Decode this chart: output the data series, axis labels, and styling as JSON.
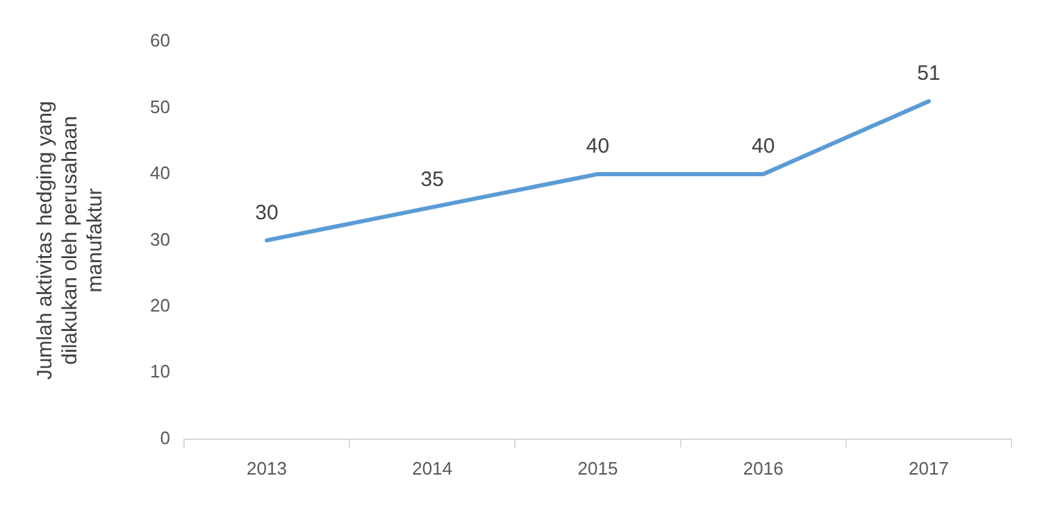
{
  "chart_data": {
    "type": "line",
    "ylabel": "Jumlah aktivitas hedging yang dilakukan oleh perusahaan manufaktur",
    "categories": [
      "2013",
      "2014",
      "2015",
      "2016",
      "2017"
    ],
    "series": [
      {
        "color": "#5b9bd5",
        "values": [
          30,
          35,
          40,
          40,
          51
        ]
      }
    ],
    "ylim": [
      0,
      60
    ],
    "yticks": [
      0,
      10,
      20,
      30,
      40,
      50,
      60
    ],
    "grid": false,
    "legend": false,
    "marker": "none",
    "line_style": "solid",
    "data_labels": true
  }
}
